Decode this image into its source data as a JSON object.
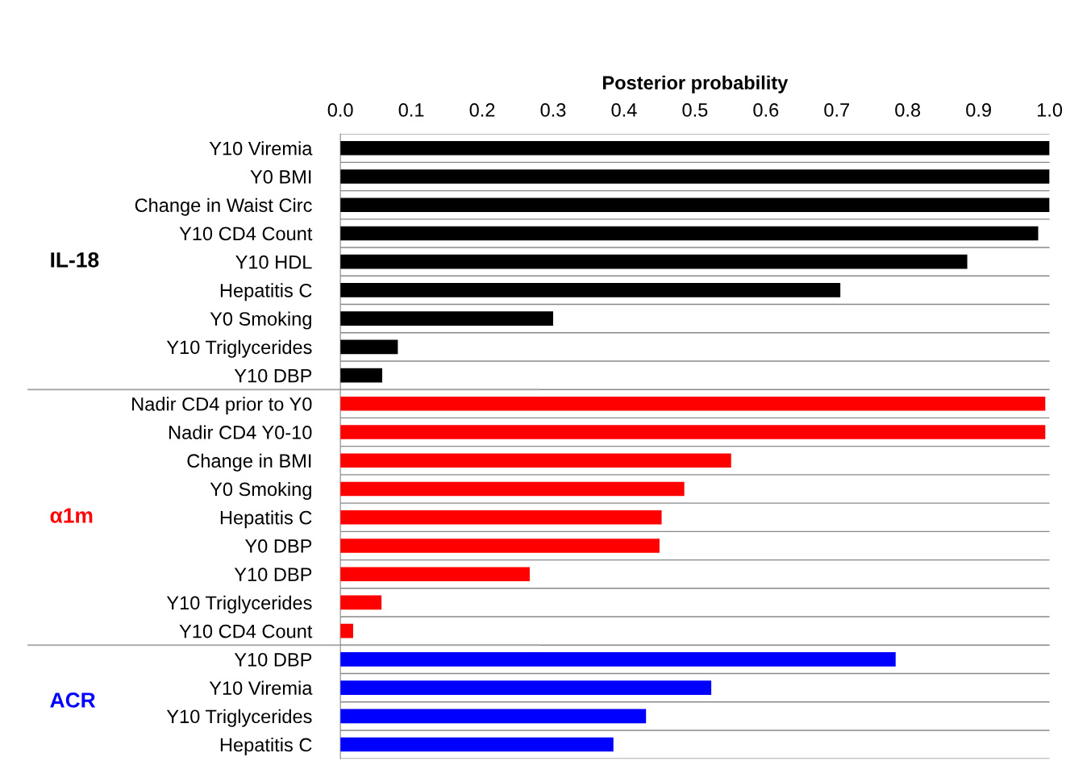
{
  "chart_data": {
    "type": "bar",
    "orientation": "horizontal",
    "xlabel": "Posterior probability",
    "categories": [
      "Y10 Viremia",
      "Y0 BMI",
      "Change in Waist Circ",
      "Y10 CD4 Count",
      "Y10 HDL",
      "Hepatitis C",
      "Y0 Smoking",
      "Y10 Triglycerides",
      "Y10 DBP",
      "Nadir CD4 prior to Y0",
      "Nadir CD4 Y0-10",
      "Change in BMI",
      "Y0 Smoking",
      "Hepatitis C",
      "Y0 DBP",
      "Y10 DBP",
      "Y10 Triglycerides",
      "Y10 CD4 Count",
      "Y10 DBP",
      "Y10 Viremia",
      "Y10 Triglycerides",
      "Hepatitis C"
    ],
    "values": [
      1.0,
      1.0,
      1.0,
      0.984,
      0.884,
      0.705,
      0.3,
      0.081,
      0.059,
      0.994,
      0.994,
      0.551,
      0.485,
      0.453,
      0.45,
      0.267,
      0.058,
      0.018,
      0.783,
      0.523,
      0.431,
      0.385
    ],
    "colors": [
      "#000000",
      "#000000",
      "#000000",
      "#000000",
      "#000000",
      "#000000",
      "#000000",
      "#000000",
      "#000000",
      "#ff0000",
      "#ff0000",
      "#ff0000",
      "#ff0000",
      "#ff0000",
      "#ff0000",
      "#ff0000",
      "#ff0000",
      "#ff0000",
      "#0000ff",
      "#0000ff",
      "#0000ff",
      "#0000ff"
    ],
    "annotations": [
      "IL-18",
      "α1m",
      "ACR"
    ],
    "xlim": [
      0,
      1.0
    ],
    "xticks": [
      {
        "value": 0,
        "label": "0.0"
      },
      0.1,
      0.2,
      0.3,
      0.4,
      0.5,
      0.6,
      0.7,
      0.8,
      0.9,
      {
        "value": 1,
        "label": "1.0"
      }
    ],
    "grid": "y"
  }
}
